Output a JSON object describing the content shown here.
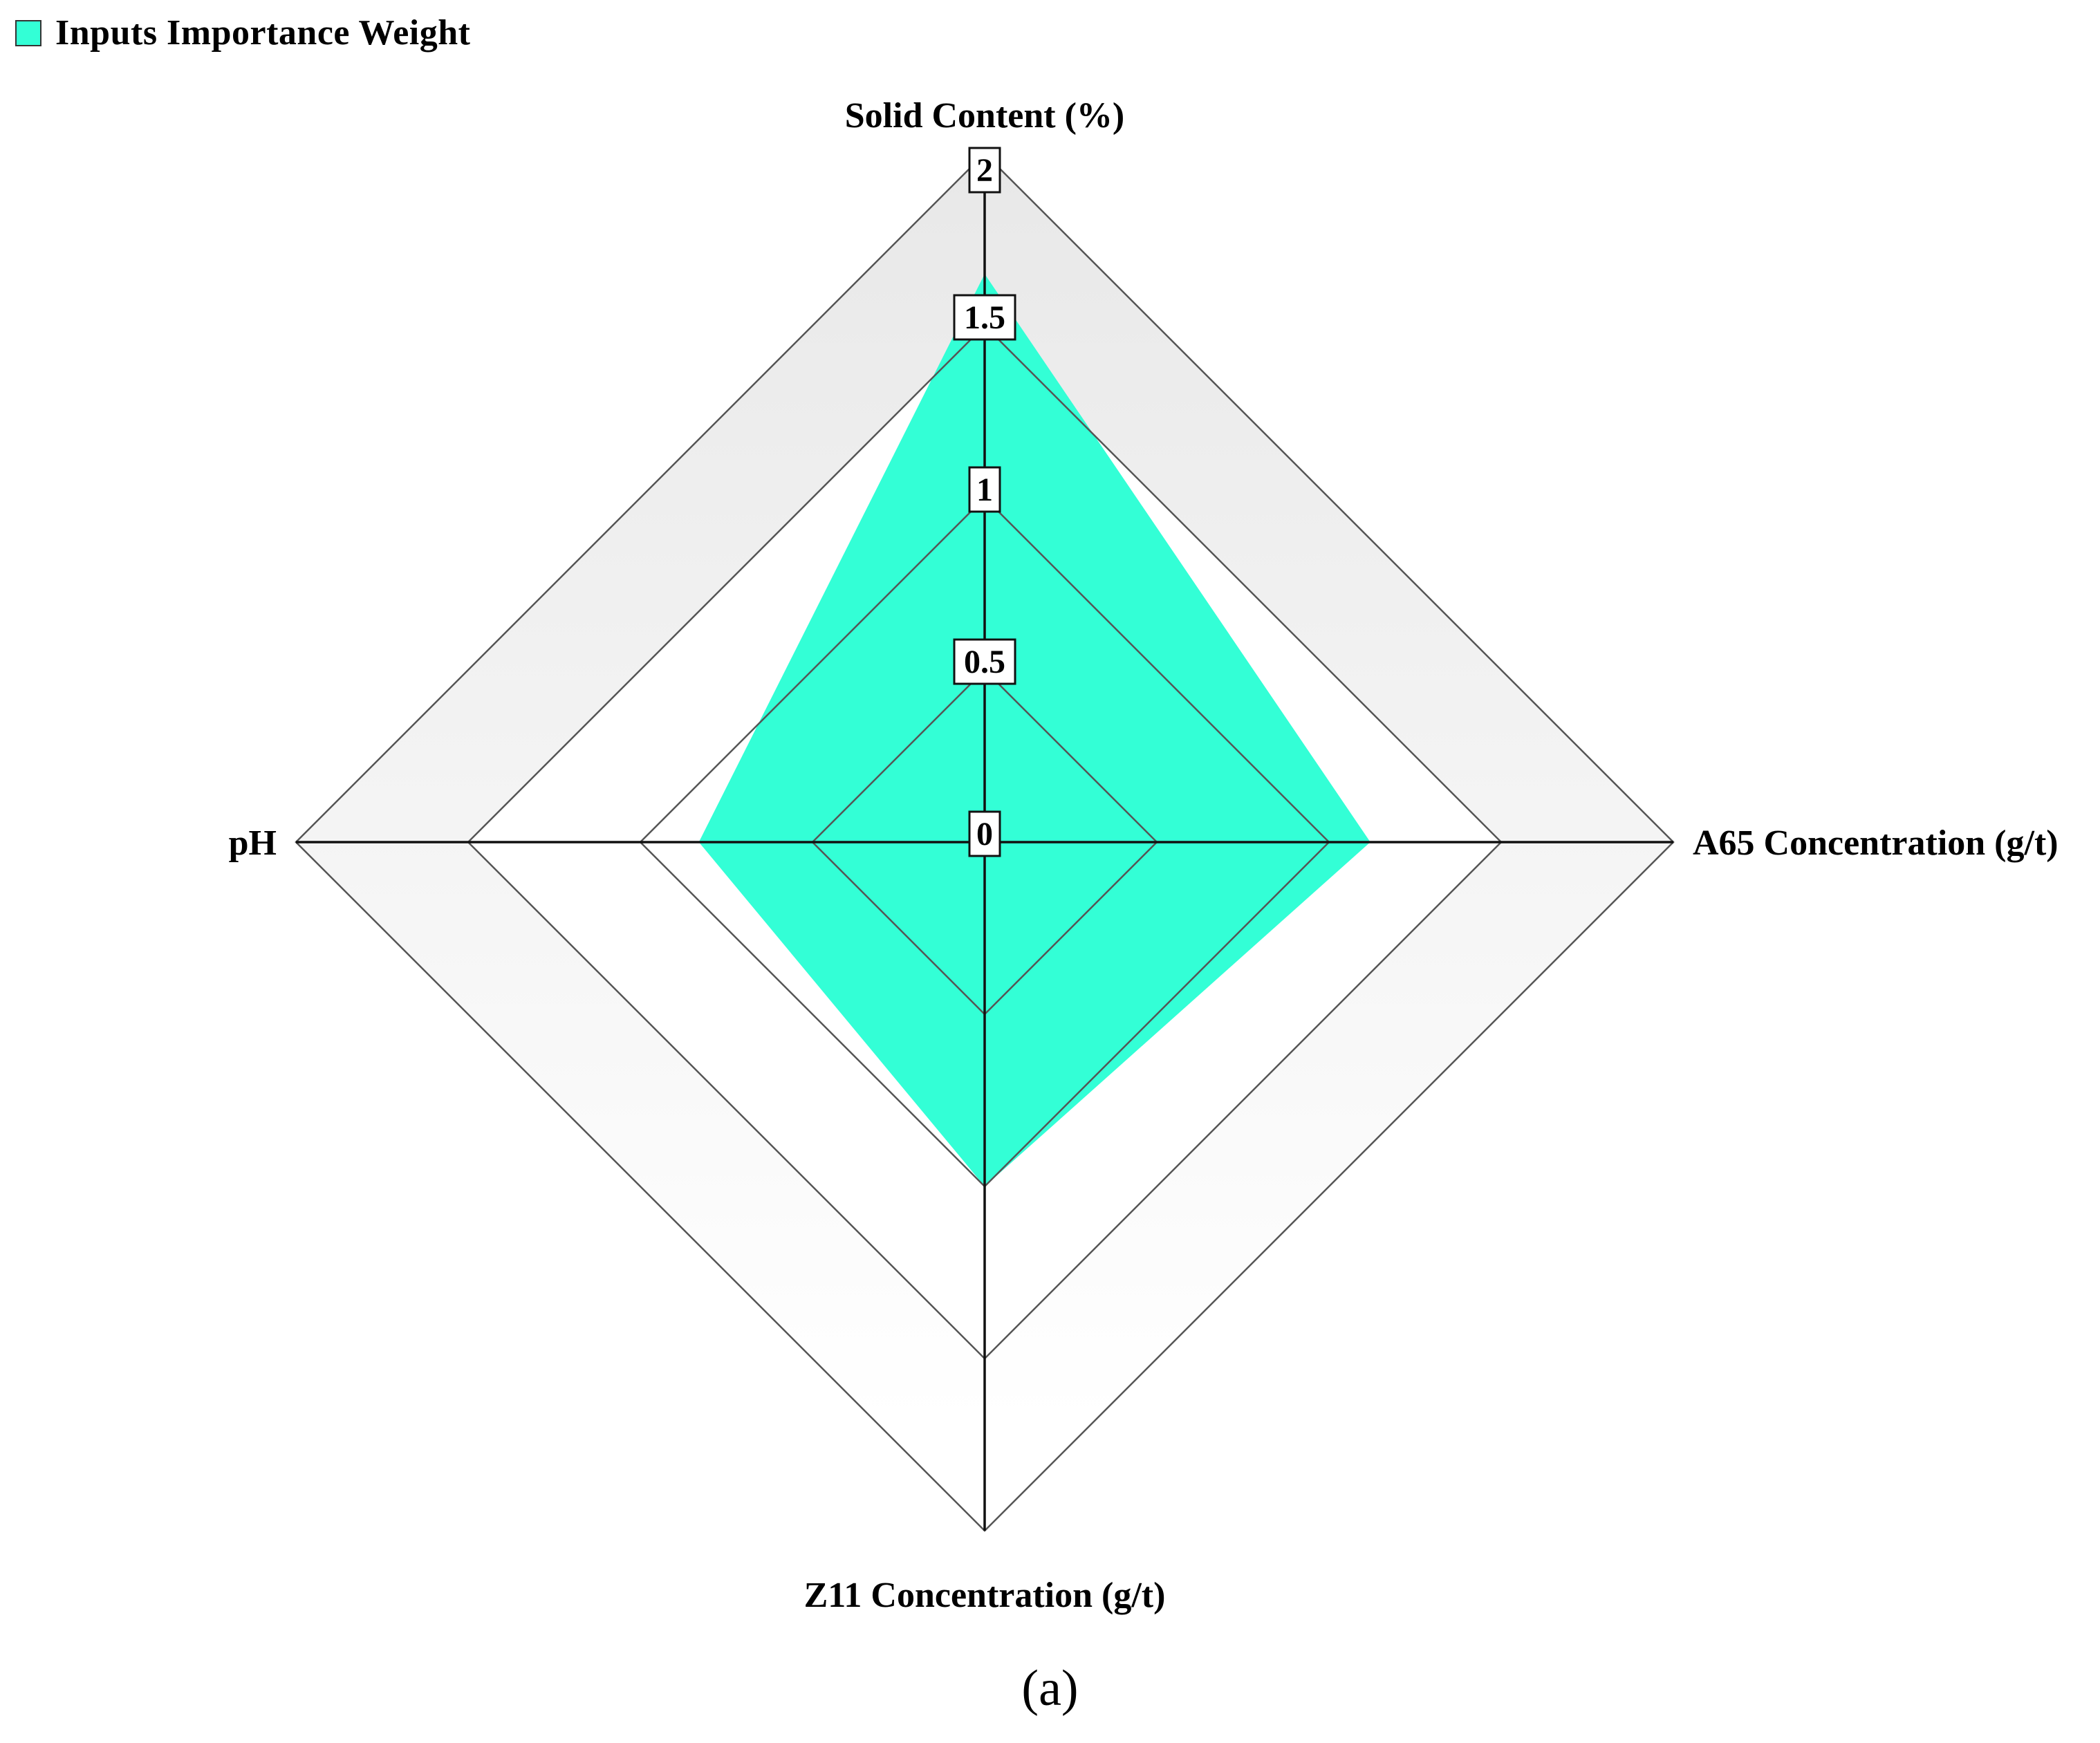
{
  "chart_data": {
    "type": "radar",
    "axes": [
      "Solid Content (%)",
      "A65 Concentration (g/t)",
      "Z11 Concentration (g/t)",
      "pH"
    ],
    "series": [
      {
        "name": "Inputs Importance Weight",
        "values": [
          1.65,
          1.12,
          1.0,
          0.83
        ]
      }
    ],
    "ticks": [
      "0",
      "0.5",
      "1",
      "1.5",
      "2"
    ],
    "tick_values": [
      0,
      0.5,
      1,
      1.5,
      2
    ],
    "range": [
      0,
      2
    ],
    "legend_position": "top-left"
  },
  "colors": {
    "series_fill": "#33ffd6",
    "grid_line": "#555555",
    "axis_line": "#111111",
    "outer_band_top": "#e8e8e8"
  },
  "legend": {
    "label": "Inputs Importance Weight"
  },
  "caption": "(a)"
}
